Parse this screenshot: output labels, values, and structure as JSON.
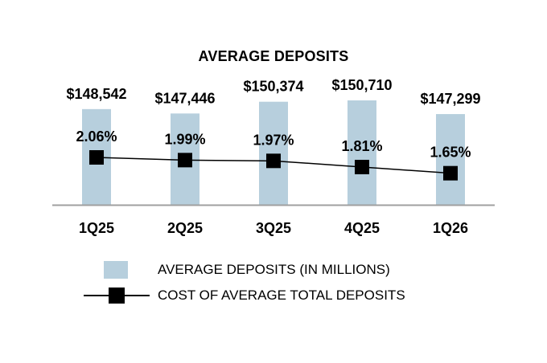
{
  "chart_data": {
    "type": "bar",
    "title": "AVERAGE DEPOSITS",
    "categories": [
      "1Q25",
      "2Q25",
      "3Q25",
      "4Q25",
      "1Q26"
    ],
    "series": [
      {
        "name": "AVERAGE DEPOSITS (IN MILLIONS)",
        "type": "bar",
        "values": [
          148542,
          147446,
          150374,
          150710,
          147299
        ],
        "labels": [
          "$148,542",
          "$147,446",
          "$150,374",
          "$150,710",
          "$147,299"
        ],
        "color": "#b7cfdd"
      },
      {
        "name": "COST OF AVERAGE TOTAL DEPOSITS",
        "type": "line",
        "values": [
          2.06,
          1.99,
          1.97,
          1.81,
          1.65
        ],
        "labels": [
          "2.06%",
          "1.99%",
          "1.97%",
          "1.81%",
          "1.65%"
        ],
        "color": "#000000"
      }
    ],
    "legend": "bottom",
    "grid": false
  }
}
